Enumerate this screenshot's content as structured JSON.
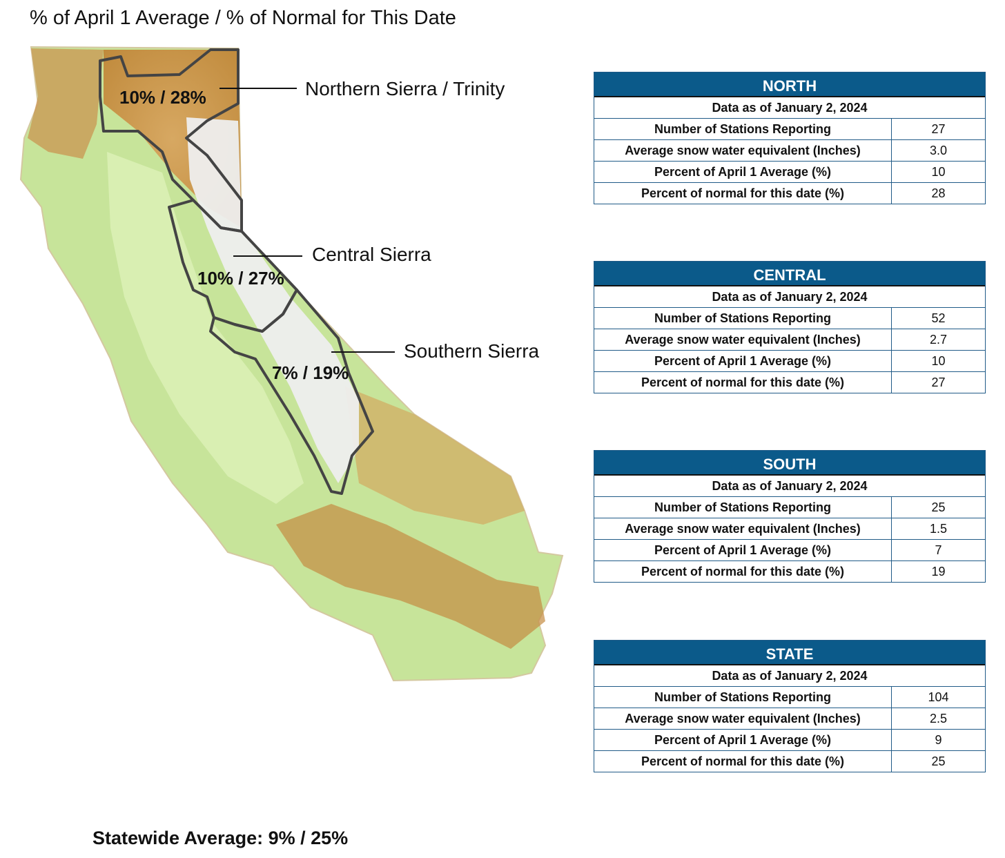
{
  "title": "% of April 1 Average / % of Normal for This Date",
  "regions": [
    {
      "name": "Northern Sierra / Trinity",
      "pct": "10% / 28%"
    },
    {
      "name": "Central Sierra",
      "pct": "10% / 27%"
    },
    {
      "name": "Southern Sierra",
      "pct": "7% / 19%"
    }
  ],
  "statewide": "Statewide Average: 9% / 25%",
  "colors": {
    "panel_header": "#0b5a8a",
    "lowland": "#c7e49a",
    "highland": "#c9923f",
    "snow": "#eeeeee",
    "basin_outline": "#444444"
  },
  "tables": [
    {
      "title": "NORTH",
      "date": "Data as of January 2, 2024",
      "rows": [
        {
          "label": "Number of Stations Reporting",
          "value": "27"
        },
        {
          "label": "Average snow water equivalent (Inches)",
          "value": "3.0"
        },
        {
          "label": "Percent of April 1 Average (%)",
          "value": "10"
        },
        {
          "label": "Percent of normal for this date (%)",
          "value": "28"
        }
      ]
    },
    {
      "title": "CENTRAL",
      "date": "Data as of January 2, 2024",
      "rows": [
        {
          "label": "Number of Stations Reporting",
          "value": "52"
        },
        {
          "label": "Average snow water equivalent (Inches)",
          "value": "2.7"
        },
        {
          "label": "Percent of April 1 Average (%)",
          "value": "10"
        },
        {
          "label": "Percent of normal for this date (%)",
          "value": "27"
        }
      ]
    },
    {
      "title": "SOUTH",
      "date": "Data as of January 2, 2024",
      "rows": [
        {
          "label": "Number of Stations Reporting",
          "value": "25"
        },
        {
          "label": "Average snow water equivalent (Inches)",
          "value": "1.5"
        },
        {
          "label": "Percent of April 1 Average (%)",
          "value": "7"
        },
        {
          "label": "Percent of normal for this date (%)",
          "value": "19"
        }
      ]
    },
    {
      "title": "STATE",
      "date": "Data as of January 2, 2024",
      "rows": [
        {
          "label": "Number of Stations Reporting",
          "value": "104"
        },
        {
          "label": "Average snow water equivalent (Inches)",
          "value": "2.5"
        },
        {
          "label": "Percent of April 1 Average (%)",
          "value": "9"
        },
        {
          "label": "Percent of normal for this date (%)",
          "value": "25"
        }
      ]
    }
  ]
}
